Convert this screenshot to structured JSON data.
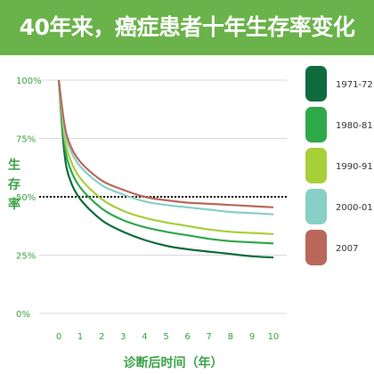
{
  "title": "40年来，癌症患者十年生存率变化",
  "colors": {
    "title_bg": "#6ab24a",
    "axis_text": "#3aa346",
    "grid": "#d9d9d9",
    "reference_line": "#000000"
  },
  "chart_data": {
    "type": "line",
    "xlabel": "诊断后时间（年）",
    "ylabel": "生存率",
    "x": [
      0,
      0.25,
      0.5,
      1,
      2,
      3,
      4,
      5,
      6,
      7,
      8,
      9,
      10
    ],
    "x_ticks": [
      "0",
      "1",
      "2",
      "3",
      "4",
      "5",
      "6",
      "7",
      "8",
      "9",
      "10"
    ],
    "y_ticks": [
      "0%",
      "25%",
      "50%",
      "75%",
      "100%"
    ],
    "xlim": [
      0,
      10
    ],
    "ylim": [
      0,
      100
    ],
    "grid": "horizontal",
    "reference_line_y": 50,
    "legend_position": "right",
    "series": [
      {
        "name": "1971-72",
        "color": "#0f6b3e",
        "values": [
          100,
          70,
          58,
          49,
          40,
          35,
          31.5,
          29,
          27.5,
          26.5,
          25.5,
          24.5,
          24
        ]
      },
      {
        "name": "1980-81",
        "color": "#2fa84a",
        "values": [
          100,
          74,
          63,
          54,
          45,
          40,
          37,
          35,
          33.5,
          32,
          31,
          30.5,
          30
        ]
      },
      {
        "name": "1990-91",
        "color": "#a7cf3a",
        "values": [
          100,
          77,
          67,
          58,
          49,
          44,
          41,
          39,
          37.5,
          36,
          35,
          34.5,
          34
        ]
      },
      {
        "name": "2000-01",
        "color": "#88cfc6",
        "values": [
          100,
          80,
          71,
          63,
          55,
          51,
          48,
          46.5,
          45.5,
          44.5,
          43.5,
          43,
          42.5
        ]
      },
      {
        "name": "2007",
        "color": "#b9685a",
        "values": [
          100,
          82,
          73,
          65,
          57,
          53,
          50,
          48.5,
          47.5,
          47,
          46.5,
          46,
          45.5
        ]
      }
    ]
  }
}
